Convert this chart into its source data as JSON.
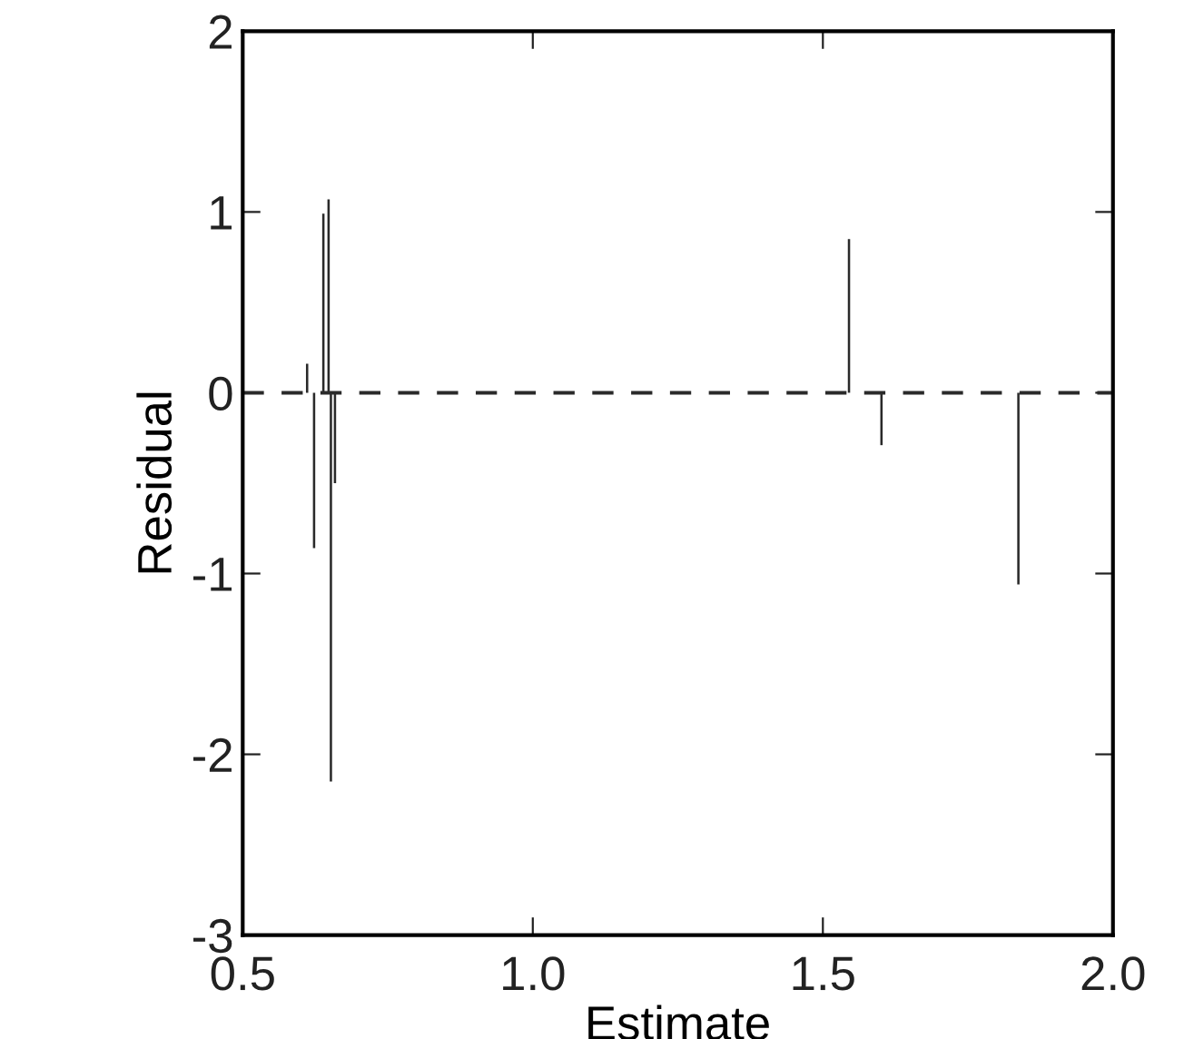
{
  "chart_data": {
    "type": "bar",
    "xlabel": "Estimate",
    "ylabel": "Residual",
    "x": [
      0.611,
      0.623,
      0.639,
      0.648,
      0.652,
      0.659,
      1.545,
      1.601,
      1.837
    ],
    "values": [
      0.16,
      -0.86,
      0.99,
      1.07,
      -2.15,
      -0.5,
      0.85,
      -0.29,
      -1.06
    ],
    "color": "#2a2a2a",
    "xlim": [
      0.5,
      2.0
    ],
    "ylim": [
      -3,
      2
    ],
    "xticks": [
      {
        "value": 0.5,
        "label": "0.5"
      },
      {
        "value": 1.0,
        "label": "1.0"
      },
      {
        "value": 1.5,
        "label": "1.5"
      },
      {
        "value": 2.0,
        "label": "2.0"
      }
    ],
    "yticks": [
      -3,
      -2,
      -1,
      0,
      1,
      2
    ],
    "ref_lines": [
      {
        "axis": "y",
        "value": 0,
        "line_style": "dashed",
        "color": "#2a2a2a"
      }
    ],
    "grid": false,
    "legend": false
  }
}
